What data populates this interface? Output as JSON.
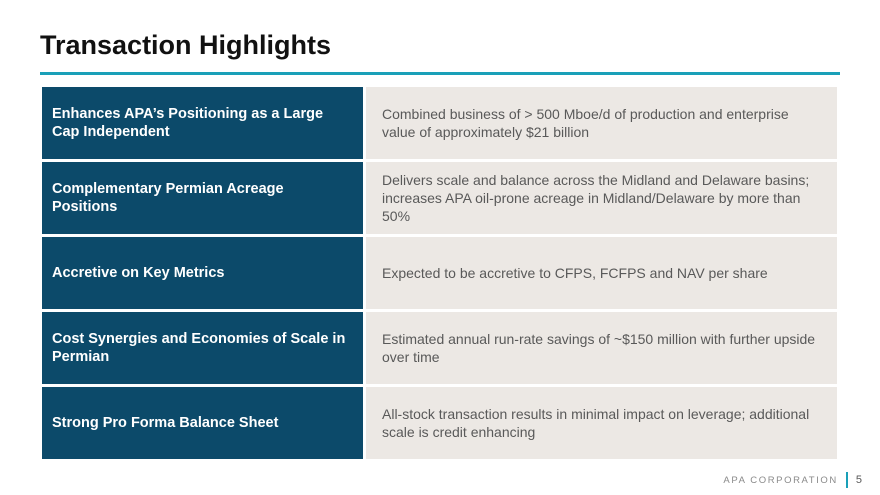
{
  "slide": {
    "title": "Transaction Highlights",
    "accent_color": "#1aa0b8",
    "header_fill_color": "#0c4a6a",
    "body_fill_color": "#ece8e4"
  },
  "highlights": [
    {
      "heading": "Enhances APA’s Positioning as a Large Cap Independent",
      "detail": "Combined business of > 500 Mboe/d of production and enterprise value of approximately $21 billion"
    },
    {
      "heading": "Complementary Permian Acreage Positions",
      "detail": "Delivers scale and balance across the Midland and Delaware basins; increases APA oil-prone acreage in Midland/Delaware by more than 50%"
    },
    {
      "heading": "Accretive on Key Metrics",
      "detail": "Expected to be accretive to CFPS, FCFPS and NAV per share"
    },
    {
      "heading": "Cost Synergies and Economies of Scale in Permian",
      "detail": "Estimated annual run-rate savings of ~$150 million with further upside over time"
    },
    {
      "heading": "Strong Pro Forma Balance Sheet",
      "detail": "All-stock transaction results in minimal impact on leverage; additional scale is credit enhancing"
    }
  ],
  "footer": {
    "company": "APA CORPORATION",
    "page_number": "5"
  }
}
